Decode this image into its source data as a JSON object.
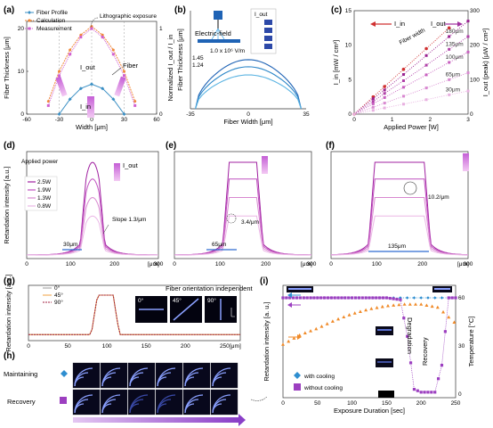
{
  "chart_data": [
    {
      "panel": "(a)",
      "type": "line",
      "xlabel": "Width [μm]",
      "ylabel": "Fiber Thickness [μm]",
      "y2label": "Normalized I_out / I_in",
      "xlim": [
        -60,
        60
      ],
      "ylim": [
        0,
        20
      ],
      "y2lim": [
        0,
        1
      ],
      "xticks": [
        -60,
        -30,
        0,
        30,
        60
      ],
      "yticks": [
        0,
        10,
        20
      ],
      "y2ticks": [
        0,
        1
      ],
      "legend": [
        "Fiber Profile",
        "Calculation",
        "Measurement"
      ],
      "annotations": [
        "Lithographic exposure",
        "Fiber",
        "I_out",
        "I_in"
      ],
      "series": [
        {
          "name": "Fiber Profile",
          "color": "#3a8fc4",
          "x": [
            -30,
            -20,
            -10,
            0,
            10,
            20,
            30
          ],
          "y": [
            0,
            3.5,
            6,
            7,
            6,
            3.5,
            0
          ]
        },
        {
          "name": "Calculation",
          "color": "#f0883a",
          "x": [
            -40,
            -30,
            -20,
            -10,
            0,
            10,
            20,
            30,
            40
          ],
          "y": [
            3,
            10,
            15,
            18.5,
            20.5,
            18.5,
            15,
            10,
            3
          ]
        },
        {
          "name": "Measurement",
          "color": "#d060d0",
          "x": [
            -40,
            -30,
            -20,
            -10,
            0,
            10,
            20,
            30,
            40
          ],
          "y": [
            2,
            9,
            14,
            18,
            20,
            18,
            14,
            9,
            2
          ]
        }
      ]
    },
    {
      "panel": "(b)",
      "type": "line",
      "xlabel": "Fiber Width [μm]",
      "ylabel": "Fiber Thickness [μm]",
      "xlim": [
        -35,
        35
      ],
      "xticks": [
        -35,
        0,
        35
      ],
      "annotations": [
        "Electric-field",
        "1.45",
        "1.24",
        "1.0 x 10⁶ V/m",
        "I_out"
      ],
      "series": [
        {
          "name": "1.45",
          "peak": 1.45
        },
        {
          "name": "1.24",
          "peak": 1.24
        },
        {
          "name": "1.0",
          "peak": 1.0
        }
      ]
    },
    {
      "panel": "(c)",
      "type": "line",
      "xlabel": "Applied Power [W]",
      "ylabel": "I_in [mW / cm²]",
      "y2label": "I_out (peak) [μW / cm²]",
      "xlim": [
        0,
        3
      ],
      "ylim": [
        0,
        15
      ],
      "y2lim": [
        0,
        300
      ],
      "xticks": [
        0,
        1,
        2,
        3
      ],
      "yticks": [
        0,
        5,
        10,
        15
      ],
      "y2ticks": [
        0,
        100,
        200,
        300
      ],
      "annotations": [
        "I_in",
        "I_out",
        "Fiber width"
      ],
      "series": [
        {
          "name": "I_in",
          "color": "#d03030",
          "axis": "left",
          "x": [
            0,
            0.5,
            0.8,
            1.3,
            1.9,
            2.5
          ],
          "y": [
            0,
            2.5,
            4,
            6.5,
            9.5,
            12.5
          ]
        },
        {
          "name": "180μm",
          "color": "#9a2090",
          "axis": "right",
          "x": [
            0,
            0.5,
            0.8,
            1.3,
            1.9,
            2.5,
            3
          ],
          "y": [
            0,
            45,
            70,
            115,
            170,
            225,
            270
          ]
        },
        {
          "name": "135μm",
          "color": "#b040a8",
          "axis": "right",
          "x": [
            0,
            0.5,
            0.8,
            1.3,
            1.9,
            2.5,
            3
          ],
          "y": [
            0,
            37,
            60,
            97,
            142,
            188,
            225
          ]
        },
        {
          "name": "100μm",
          "color": "#c860c0",
          "axis": "right",
          "x": [
            0,
            0.5,
            0.8,
            1.3,
            1.9,
            2.5,
            3
          ],
          "y": [
            0,
            30,
            48,
            78,
            114,
            150,
            180
          ]
        },
        {
          "name": "65μm",
          "color": "#d888d0",
          "axis": "right",
          "x": [
            0,
            0.5,
            0.8,
            1.3,
            1.9,
            2.5,
            3
          ],
          "y": [
            0,
            20,
            32,
            52,
            76,
            100,
            120
          ]
        },
        {
          "name": "30μm",
          "color": "#e8b0e0",
          "axis": "right",
          "x": [
            0,
            0.5,
            0.8,
            1.3,
            1.9,
            2.5,
            3
          ],
          "y": [
            0,
            11,
            18,
            29,
            42,
            56,
            67
          ]
        }
      ]
    },
    {
      "panel": "(d)",
      "type": "line",
      "ylabel": "Retardation intensity [a.u.]",
      "xunit": "[μm]",
      "xticks": [
        0,
        100,
        200,
        300
      ],
      "legend_title": "Applied power",
      "legend": [
        "2.5W",
        "1.9W",
        "1.3W",
        "0.8W"
      ],
      "annotations": [
        "I_out",
        "Slope 1.3/μm",
        "30μm"
      ]
    },
    {
      "panel": "(e)",
      "type": "line",
      "xunit": "[μm]",
      "xticks": [
        0,
        100,
        200,
        300
      ],
      "annotations": [
        "3.4/μm",
        "65μm"
      ]
    },
    {
      "panel": "(f)",
      "type": "line",
      "xunit": "[μm]",
      "xticks": [
        0,
        100,
        200,
        300
      ],
      "annotations": [
        "10.2/μm",
        "135μm"
      ]
    },
    {
      "panel": "(g)",
      "type": "line",
      "ylabel": "Retardation intensity [a.u.]",
      "xunit": "[μm]",
      "xticks": [
        0,
        50,
        100,
        150,
        200,
        250
      ],
      "legend": [
        "0°",
        "45°",
        "90°"
      ],
      "annotations": [
        "Fiber orientation independent",
        "0°",
        "45°",
        "90°"
      ]
    },
    {
      "panel": "(h)",
      "type": "table",
      "rows": [
        "Maintaining",
        "Recovery"
      ]
    },
    {
      "panel": "(i)",
      "type": "line",
      "xlabel": "Exposure Duration [sec]",
      "ylabel": "Retardation intensity [a. u.]",
      "y2label": "Temperature [°C]",
      "xlim": [
        0,
        250
      ],
      "y2lim": [
        0,
        60
      ],
      "xticks": [
        0,
        50,
        100,
        150,
        200,
        250
      ],
      "y2ticks": [
        0,
        30,
        60
      ],
      "annotations": [
        "Degradation",
        "Recovery"
      ],
      "legend": [
        "with cooling",
        "without cooling"
      ],
      "series": [
        {
          "name": "with cooling",
          "color": "#2e8ed0",
          "x": [
            0,
            250
          ],
          "y": [
            1,
            1
          ]
        },
        {
          "name": "without cooling",
          "color": "#9c3fc0",
          "x": [
            0,
            150,
            170,
            180,
            190,
            200,
            210,
            220,
            230,
            240,
            250
          ],
          "y": [
            1,
            1,
            0.98,
            0.6,
            0.05,
            0.02,
            0.02,
            0.02,
            0.3,
            1,
            1
          ]
        },
        {
          "name": "Temperature",
          "color": "#f08a28",
          "axis": "right",
          "x": [
            0,
            25,
            50,
            75,
            100,
            125,
            150,
            175,
            200,
            225,
            240,
            250
          ],
          "y": [
            31,
            37,
            41,
            46,
            50,
            53,
            55,
            56,
            56,
            54,
            48,
            44
          ]
        }
      ]
    }
  ]
}
